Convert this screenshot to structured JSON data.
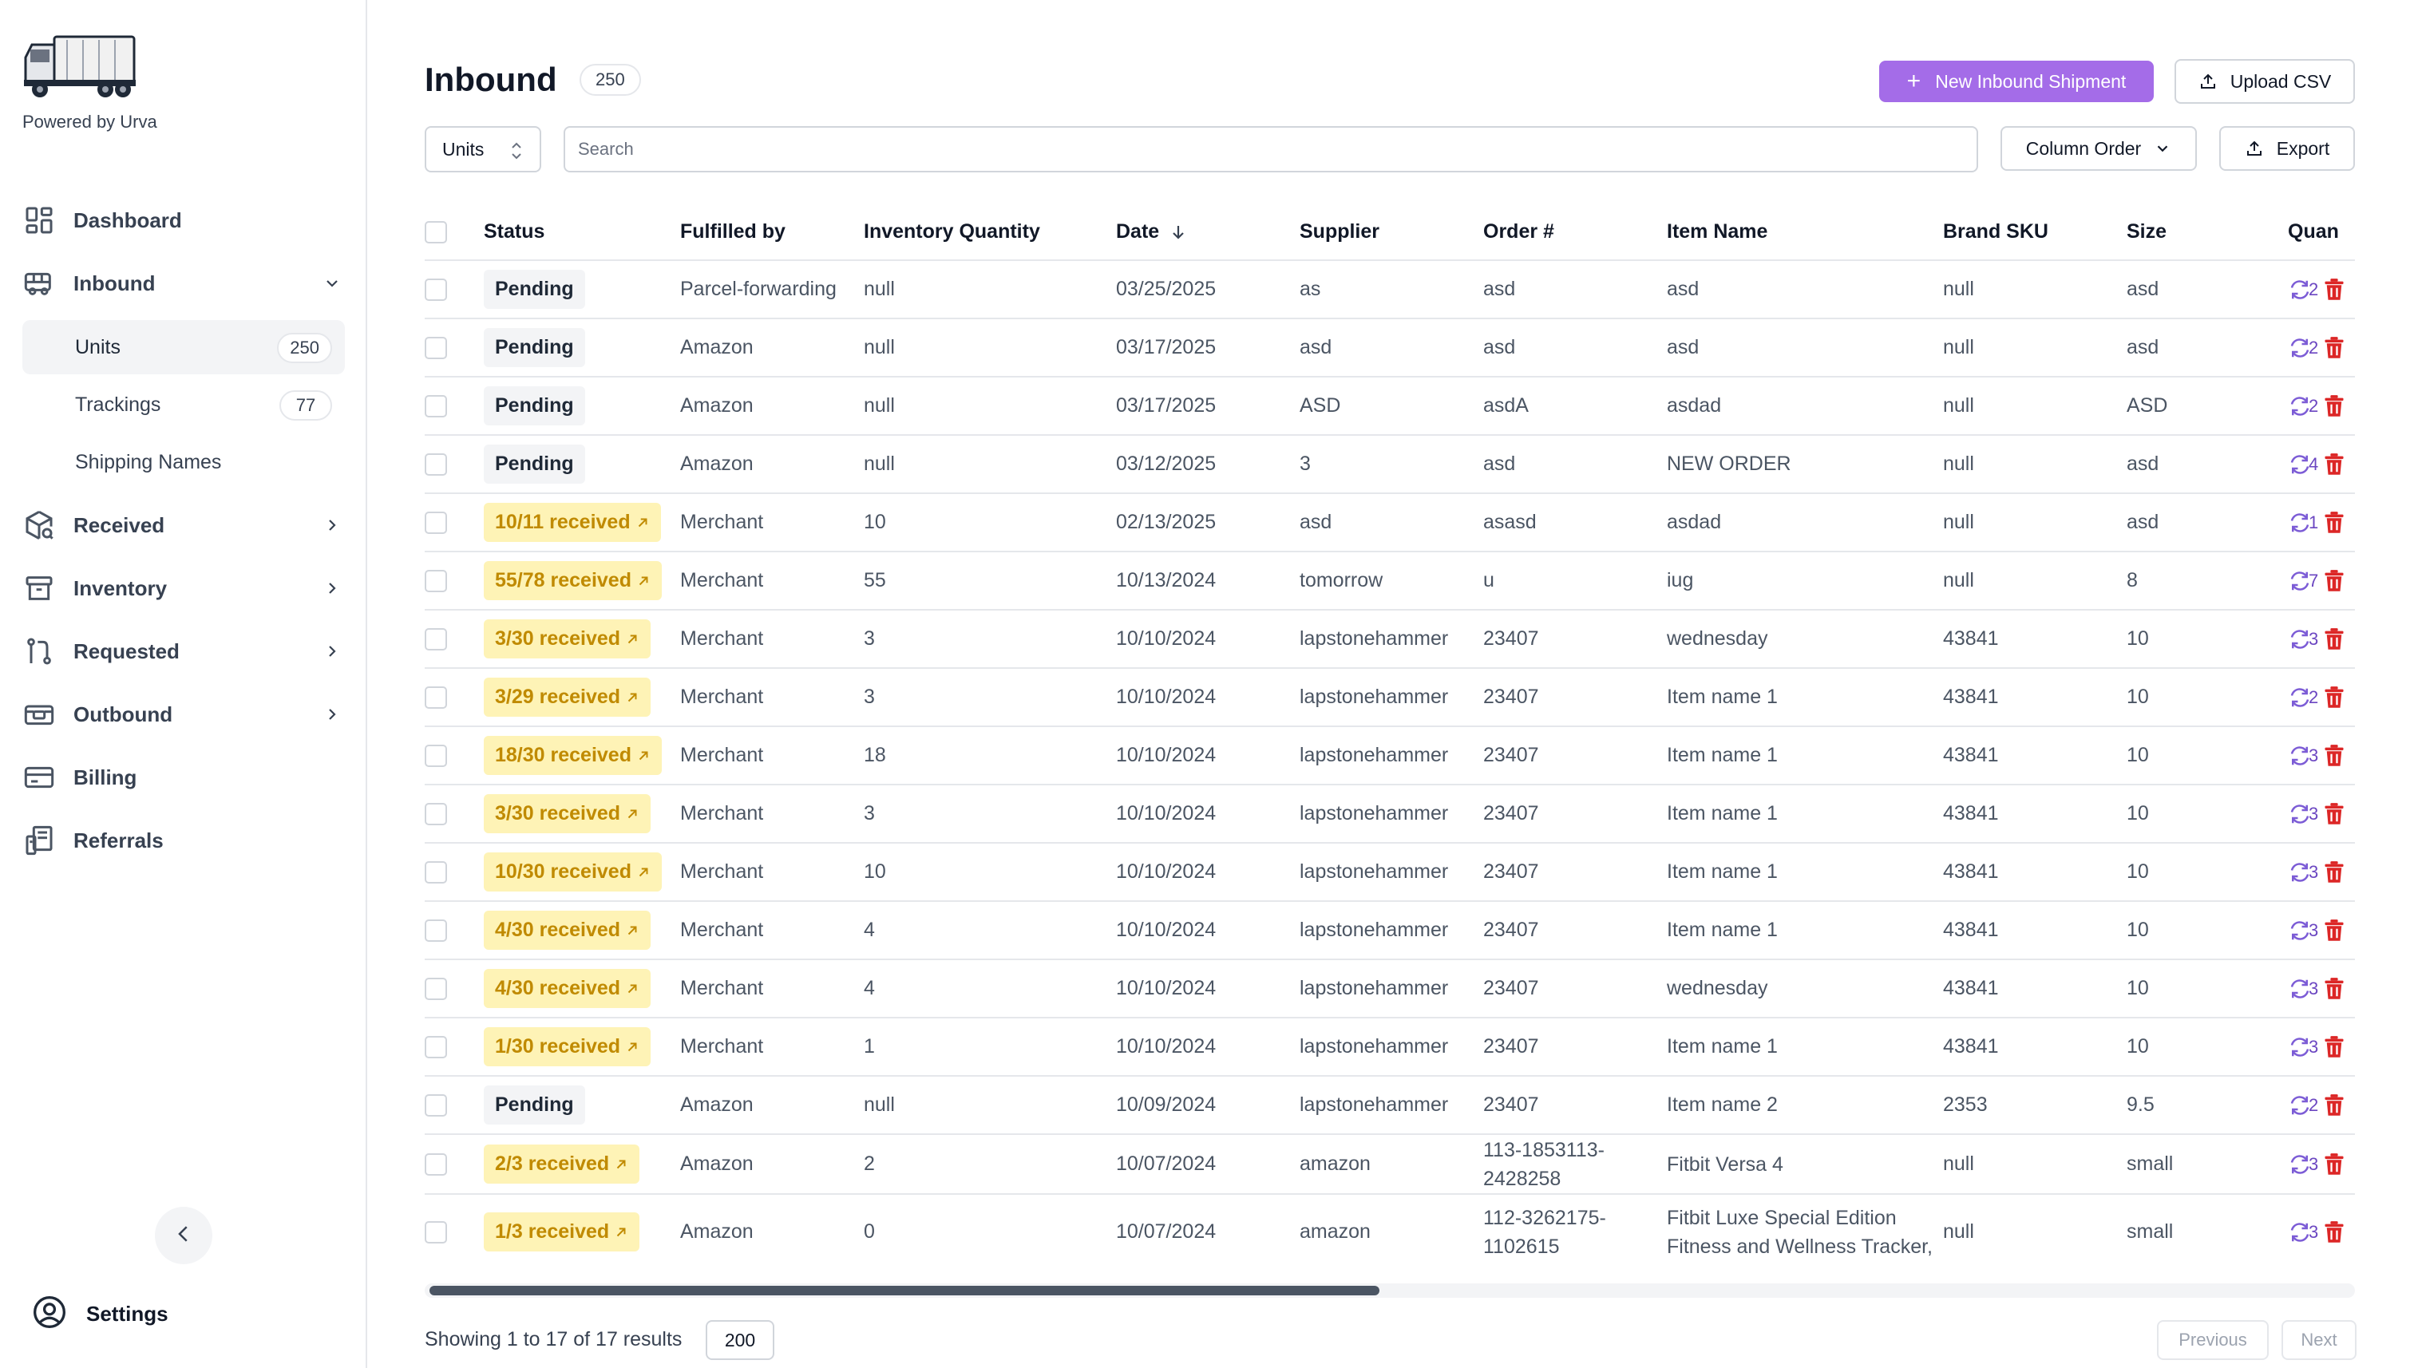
{
  "sidebar": {
    "powered_by": "Powered by Urva",
    "nav": {
      "dashboard": "Dashboard",
      "inbound": "Inbound",
      "received": "Received",
      "inventory": "Inventory",
      "requested": "Requested",
      "outbound": "Outbound",
      "billing": "Billing",
      "referrals": "Referrals"
    },
    "sub": {
      "units": "Units",
      "units_count": "250",
      "trackings": "Trackings",
      "trackings_count": "77",
      "shipping_names": "Shipping Names"
    },
    "settings": "Settings"
  },
  "header": {
    "title": "Inbound",
    "count": "250",
    "new_button": "New Inbound Shipment",
    "upload_button": "Upload CSV"
  },
  "toolbar": {
    "units_select": "Units",
    "search_placeholder": "Search",
    "column_order": "Column Order",
    "export": "Export"
  },
  "table": {
    "columns": [
      "Status",
      "Fulfilled by",
      "Inventory Quantity",
      "Date",
      "Supplier",
      "Order #",
      "Item Name",
      "Brand SKU",
      "Size",
      "Quan"
    ],
    "rows": [
      {
        "status": "Pending",
        "fulfilled": "Parcel-forwarding",
        "qty": "null",
        "date": "03/25/2025",
        "supplier": "as",
        "order": "asd",
        "item": "asd",
        "sku": "null",
        "size": "asd",
        "q": "2"
      },
      {
        "status": "Pending",
        "fulfilled": "Amazon",
        "qty": "null",
        "date": "03/17/2025",
        "supplier": "asd",
        "order": "asd",
        "item": "asd",
        "sku": "null",
        "size": "asd",
        "q": "2"
      },
      {
        "status": "Pending",
        "fulfilled": "Amazon",
        "qty": "null",
        "date": "03/17/2025",
        "supplier": "ASD",
        "order": "asdA",
        "item": "asdad",
        "sku": "null",
        "size": "ASD",
        "q": "2"
      },
      {
        "status": "Pending",
        "fulfilled": "Amazon",
        "qty": "null",
        "date": "03/12/2025",
        "supplier": "3",
        "order": "asd",
        "item": "NEW ORDER",
        "sku": "null",
        "size": "asd",
        "q": "4"
      },
      {
        "status": "10/11 received",
        "fulfilled": "Merchant",
        "qty": "10",
        "date": "02/13/2025",
        "supplier": "asd",
        "order": "asasd",
        "item": "asdad",
        "sku": "null",
        "size": "asd",
        "q": "1"
      },
      {
        "status": "55/78 received",
        "fulfilled": "Merchant",
        "qty": "55",
        "date": "10/13/2024",
        "supplier": "tomorrow",
        "order": "u",
        "item": "iug",
        "sku": "null",
        "size": "8",
        "q": "7"
      },
      {
        "status": "3/30 received",
        "fulfilled": "Merchant",
        "qty": "3",
        "date": "10/10/2024",
        "supplier": "lapstonehammer",
        "order": "23407",
        "item": "wednesday",
        "sku": "43841",
        "size": "10",
        "q": "3"
      },
      {
        "status": "3/29 received",
        "fulfilled": "Merchant",
        "qty": "3",
        "date": "10/10/2024",
        "supplier": "lapstonehammer",
        "order": "23407",
        "item": "Item name 1",
        "sku": "43841",
        "size": "10",
        "q": "2"
      },
      {
        "status": "18/30 received",
        "fulfilled": "Merchant",
        "qty": "18",
        "date": "10/10/2024",
        "supplier": "lapstonehammer",
        "order": "23407",
        "item": "Item name 1",
        "sku": "43841",
        "size": "10",
        "q": "3"
      },
      {
        "status": "3/30 received",
        "fulfilled": "Merchant",
        "qty": "3",
        "date": "10/10/2024",
        "supplier": "lapstonehammer",
        "order": "23407",
        "item": "Item name 1",
        "sku": "43841",
        "size": "10",
        "q": "3"
      },
      {
        "status": "10/30 received",
        "fulfilled": "Merchant",
        "qty": "10",
        "date": "10/10/2024",
        "supplier": "lapstonehammer",
        "order": "23407",
        "item": "Item name 1",
        "sku": "43841",
        "size": "10",
        "q": "3"
      },
      {
        "status": "4/30 received",
        "fulfilled": "Merchant",
        "qty": "4",
        "date": "10/10/2024",
        "supplier": "lapstonehammer",
        "order": "23407",
        "item": "Item name 1",
        "sku": "43841",
        "size": "10",
        "q": "3"
      },
      {
        "status": "4/30 received",
        "fulfilled": "Merchant",
        "qty": "4",
        "date": "10/10/2024",
        "supplier": "lapstonehammer",
        "order": "23407",
        "item": "wednesday",
        "sku": "43841",
        "size": "10",
        "q": "3"
      },
      {
        "status": "1/30 received",
        "fulfilled": "Merchant",
        "qty": "1",
        "date": "10/10/2024",
        "supplier": "lapstonehammer",
        "order": "23407",
        "item": "Item name 1",
        "sku": "43841",
        "size": "10",
        "q": "3"
      },
      {
        "status": "Pending",
        "fulfilled": "Amazon",
        "qty": "null",
        "date": "10/09/2024",
        "supplier": "lapstonehammer",
        "order": "23407",
        "item": "Item name 2",
        "sku": "2353",
        "size": "9.5",
        "q": "2"
      },
      {
        "status": "2/3 received",
        "fulfilled": "Amazon",
        "qty": "2",
        "date": "10/07/2024",
        "supplier": "amazon",
        "order": "113-1853113-2428258",
        "item": "Fitbit Versa 4",
        "sku": "null",
        "size": "small",
        "q": "3"
      },
      {
        "status": "1/3 received",
        "fulfilled": "Amazon",
        "qty": "0",
        "date": "10/07/2024",
        "supplier": "amazon",
        "order": "112-3262175-1102615",
        "item": "Fitbit Luxe Special Edition Fitness and Wellness Tracker,",
        "sku": "null",
        "size": "small",
        "q": "3"
      }
    ]
  },
  "footer": {
    "showing": "Showing 1 to 17 of 17 results",
    "page_size": "200",
    "previous": "Previous",
    "next": "Next"
  },
  "colors": {
    "accent": "#a46ce8",
    "received_bg": "#fef3b6",
    "received_text": "#c08a00",
    "delete": "#dc2626",
    "refresh": "#7c5cd6"
  }
}
